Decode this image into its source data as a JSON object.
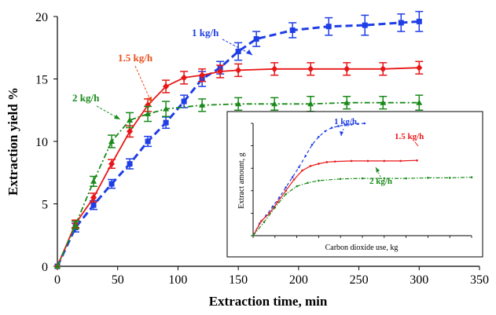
{
  "chart_data": [
    {
      "type": "line",
      "xlabel": "Extraction time, min",
      "ylabel": "Extraction yield %",
      "xlim": [
        0,
        350
      ],
      "ylim": [
        0,
        20
      ],
      "xticks": [
        0,
        50,
        100,
        150,
        200,
        250,
        300,
        350
      ],
      "yticks": [
        0,
        5,
        10,
        15,
        20
      ],
      "grid": false,
      "error_bars": true,
      "series": [
        {
          "name": "1 kg/h",
          "color": "#1f3ee6",
          "linestyle": "dashed",
          "marker": "square",
          "x": [
            0,
            15,
            30,
            45,
            60,
            75,
            90,
            105,
            120,
            135,
            150,
            165,
            195,
            225,
            255,
            285,
            300
          ],
          "y": [
            0,
            3.1,
            4.9,
            6.6,
            8.2,
            10.0,
            11.5,
            13.2,
            15.0,
            15.9,
            17.2,
            18.2,
            18.9,
            19.2,
            19.3,
            19.5,
            19.6
          ],
          "error": [
            0,
            0.35,
            0.35,
            0.35,
            0.4,
            0.4,
            0.45,
            0.5,
            0.6,
            0.5,
            0.7,
            0.6,
            0.6,
            0.7,
            0.8,
            0.7,
            0.8
          ]
        },
        {
          "name": "1.5 kg/h",
          "color": "#e81717",
          "linestyle": "solid",
          "marker": "diamond",
          "x": [
            0,
            15,
            30,
            45,
            60,
            75,
            90,
            105,
            120,
            135,
            150,
            180,
            210,
            240,
            270,
            300
          ],
          "y": [
            0,
            3.4,
            5.5,
            8.2,
            10.8,
            12.9,
            14.4,
            15.1,
            15.3,
            15.6,
            15.7,
            15.8,
            15.8,
            15.8,
            15.8,
            15.9
          ],
          "error": [
            0,
            0.3,
            0.35,
            0.35,
            0.45,
            0.5,
            0.5,
            0.5,
            0.5,
            0.5,
            0.5,
            0.5,
            0.5,
            0.5,
            0.5,
            0.5
          ]
        },
        {
          "name": "2 kg/h",
          "color": "#1a8a1a",
          "linestyle": "dashdot",
          "marker": "triangle",
          "x": [
            0,
            15,
            30,
            45,
            60,
            75,
            90,
            120,
            150,
            180,
            210,
            240,
            270,
            300
          ],
          "y": [
            0,
            3.3,
            6.8,
            10.0,
            11.7,
            12.2,
            12.6,
            12.9,
            13.0,
            13.0,
            13.0,
            13.1,
            13.1,
            13.1
          ],
          "error": [
            0,
            0.3,
            0.4,
            0.5,
            0.6,
            0.6,
            0.6,
            0.5,
            0.5,
            0.5,
            0.6,
            0.5,
            0.5,
            0.6
          ]
        }
      ]
    },
    {
      "type": "line",
      "xlabel": "Carbon dioxide use, kg",
      "ylabel": "Extract amount, g",
      "tick_labels_printed": false,
      "grid": false,
      "series": [
        {
          "name": "1 kg/h",
          "color": "#1f3ee6",
          "linestyle": "dashed",
          "x": [
            0,
            0.3,
            0.6,
            0.9,
            1.2,
            1.5,
            1.8,
            2.1,
            2.4,
            2.7,
            3.0,
            3.3,
            3.6,
            3.9,
            4.2,
            4.5,
            4.8,
            5.1
          ],
          "y": [
            0,
            0.11,
            0.18,
            0.26,
            0.34,
            0.43,
            0.52,
            0.61,
            0.71,
            0.81,
            0.88,
            0.93,
            0.96,
            0.975,
            0.985,
            0.99,
            0.995,
            1.0
          ]
        },
        {
          "name": "1.5 kg/h",
          "color": "#e81717",
          "linestyle": "solid",
          "x": [
            0,
            0.375,
            0.75,
            1.125,
            1.5,
            1.875,
            2.25,
            2.625,
            3.0,
            3.375,
            3.75,
            4.5,
            5.25,
            6.0,
            6.75,
            7.5
          ],
          "y": [
            0,
            0.13,
            0.2,
            0.3,
            0.4,
            0.5,
            0.58,
            0.62,
            0.64,
            0.655,
            0.66,
            0.665,
            0.665,
            0.665,
            0.665,
            0.67
          ]
        },
        {
          "name": "2 kg/h",
          "color": "#1a8a1a",
          "linestyle": "dashdot",
          "x": [
            0,
            0.5,
            1.0,
            1.5,
            2.0,
            2.5,
            3.0,
            4.0,
            5.0,
            6.0,
            7.0,
            8.0,
            9.0,
            10.0
          ],
          "y": [
            0,
            0.12,
            0.25,
            0.37,
            0.44,
            0.47,
            0.49,
            0.505,
            0.51,
            0.51,
            0.51,
            0.515,
            0.515,
            0.52
          ]
        }
      ]
    }
  ]
}
